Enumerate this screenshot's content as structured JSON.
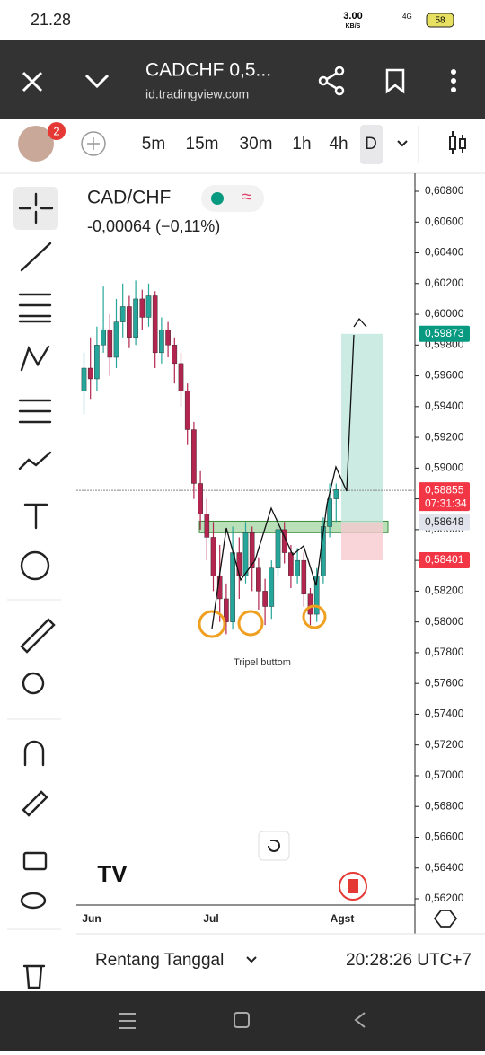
{
  "status_bar": {
    "time": "21.28",
    "speed": "3.00",
    "speed_unit": "KB/S",
    "network": "4G",
    "battery": "58"
  },
  "browser": {
    "title": "CADCHF 0,5...",
    "url": "id.tradingview.com"
  },
  "toolbar": {
    "notifications": "2",
    "intervals": [
      "5m",
      "15m",
      "30m",
      "1h",
      "4h",
      "D"
    ]
  },
  "chart_data": {
    "type": "candlestick",
    "title": "CAD/CHF",
    "change": "-0,00064 (−0,11%)",
    "annotation": "Tripel buttom",
    "up_color": "#26a69a",
    "down_color": "#b2254e",
    "open": [
      0.595,
      0.5965,
      0.5958,
      0.598,
      0.599,
      0.5972,
      0.5995,
      0.6005,
      0.5985,
      0.601,
      0.5998,
      0.6012,
      0.5975,
      0.599,
      0.598,
      0.5968,
      0.595,
      0.5925,
      0.589,
      0.587,
      0.5855,
      0.583,
      0.5815,
      0.58,
      0.5845,
      0.583,
      0.5858,
      0.5835,
      0.582,
      0.581,
      0.5835,
      0.586,
      0.5845,
      0.583,
      0.584,
      0.5818,
      0.5805,
      0.583,
      0.5862,
      0.588
    ],
    "high": [
      0.5975,
      0.5985,
      0.5992,
      0.6018,
      0.6,
      0.601,
      0.602,
      0.6012,
      0.6022,
      0.6016,
      0.602,
      0.6015,
      0.5998,
      0.5995,
      0.5985,
      0.5975,
      0.5955,
      0.593,
      0.5898,
      0.588,
      0.5865,
      0.585,
      0.5825,
      0.5862,
      0.5855,
      0.5865,
      0.5862,
      0.5842,
      0.5828,
      0.584,
      0.5868,
      0.5865,
      0.585,
      0.5848,
      0.5845,
      0.5822,
      0.5835,
      0.5868,
      0.589,
      0.589
    ],
    "low": [
      0.5935,
      0.5945,
      0.595,
      0.5975,
      0.596,
      0.5965,
      0.5985,
      0.5978,
      0.598,
      0.599,
      0.5992,
      0.5965,
      0.5968,
      0.5972,
      0.5955,
      0.594,
      0.5915,
      0.588,
      0.586,
      0.584,
      0.582,
      0.58,
      0.5792,
      0.5795,
      0.5815,
      0.5825,
      0.582,
      0.5808,
      0.5798,
      0.5802,
      0.583,
      0.5838,
      0.5822,
      0.5825,
      0.581,
      0.5798,
      0.58,
      0.5825,
      0.5855,
      0.5865
    ],
    "close": [
      0.5965,
      0.5958,
      0.598,
      0.599,
      0.5972,
      0.5995,
      0.6005,
      0.5985,
      0.601,
      0.5998,
      0.6012,
      0.5975,
      0.599,
      0.598,
      0.5968,
      0.595,
      0.5925,
      0.589,
      0.587,
      0.5855,
      0.583,
      0.5815,
      0.58,
      0.5845,
      0.583,
      0.5858,
      0.5835,
      0.582,
      0.581,
      0.5835,
      0.586,
      0.5845,
      0.583,
      0.584,
      0.5818,
      0.5805,
      0.583,
      0.5862,
      0.588,
      0.5886
    ],
    "x_labels": [
      "Jun",
      "Jul",
      "Agst"
    ],
    "ylim": [
      0.562,
      0.608
    ],
    "yticks": [
      {
        "value": 0.608,
        "label": "0,60800"
      },
      {
        "value": 0.606,
        "label": "0,60600"
      },
      {
        "value": 0.604,
        "label": "0,60400"
      },
      {
        "value": 0.602,
        "label": "0,60200"
      },
      {
        "value": 0.6,
        "label": "0,60000"
      },
      {
        "value": 0.598,
        "label": "0,59800"
      },
      {
        "value": 0.596,
        "label": "0,59600"
      },
      {
        "value": 0.594,
        "label": "0,59400"
      },
      {
        "value": 0.592,
        "label": "0,59200"
      },
      {
        "value": 0.59,
        "label": "0,59000"
      },
      {
        "value": 0.588,
        "label": "0,58800"
      },
      {
        "value": 0.586,
        "label": "0,58600"
      },
      {
        "value": 0.584,
        "label": "0,58400"
      },
      {
        "value": 0.582,
        "label": "0,58200"
      },
      {
        "value": 0.58,
        "label": "0,58000"
      },
      {
        "value": 0.578,
        "label": "0,57800"
      },
      {
        "value": 0.576,
        "label": "0,57600"
      },
      {
        "value": 0.574,
        "label": "0,57400"
      },
      {
        "value": 0.572,
        "label": "0,57200"
      },
      {
        "value": 0.57,
        "label": "0,57000"
      },
      {
        "value": 0.568,
        "label": "0,56800"
      },
      {
        "value": 0.566,
        "label": "0,56600"
      },
      {
        "value": 0.564,
        "label": "0,56400"
      },
      {
        "value": 0.562,
        "label": "0,56200"
      }
    ],
    "price_marks": [
      {
        "value": 0.59873,
        "label": "0,59873",
        "color": "#089981"
      },
      {
        "value": 0.58855,
        "label": "0,58855",
        "countdown": "07:31:34",
        "color": "#f23645"
      },
      {
        "value": 0.58648,
        "label": "0,58648",
        "color": "#e0e3eb"
      },
      {
        "value": 0.58401,
        "label": "0,58401",
        "color": "#f23645"
      }
    ],
    "zone": [
      0.58655,
      0.5858
    ]
  },
  "footer": {
    "range": "Rentang Tanggal",
    "clock": "20:28:26 UTC+7"
  }
}
